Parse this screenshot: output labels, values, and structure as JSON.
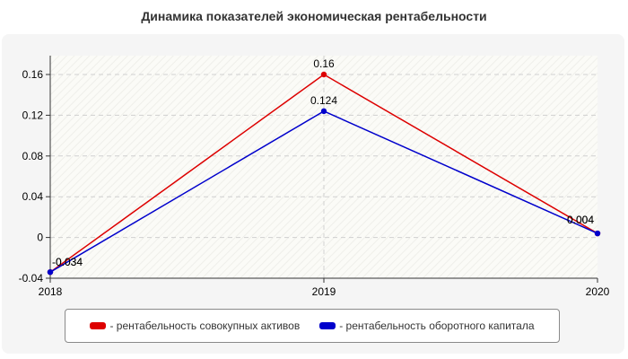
{
  "chart_data": {
    "type": "line",
    "title": "Динамика показателей экономическая рентабельности",
    "x": [
      "2018",
      "2019",
      "2020"
    ],
    "ylim": [
      -0.04,
      0.18
    ],
    "yticks": [
      "0.16",
      "0.12",
      "0.08",
      "0.04",
      "0",
      "-0.04"
    ],
    "ytick_values": [
      0.16,
      0.12,
      0.08,
      0.04,
      0,
      -0.04
    ],
    "grid": true,
    "legend_position": "bottom",
    "series": [
      {
        "name": "- рентабельность совокупных активов",
        "color": "#dd0000",
        "values": [
          -0.034,
          0.16,
          0.004
        ],
        "labels": [
          "-0.034",
          "0.16",
          "0.004"
        ]
      },
      {
        "name": "- рентабельность оборотного капитала",
        "color": "#0000cc",
        "values": [
          -0.034,
          0.124,
          0.004
        ],
        "labels": [
          "-0.034",
          "0.124",
          "0.004"
        ]
      }
    ]
  }
}
